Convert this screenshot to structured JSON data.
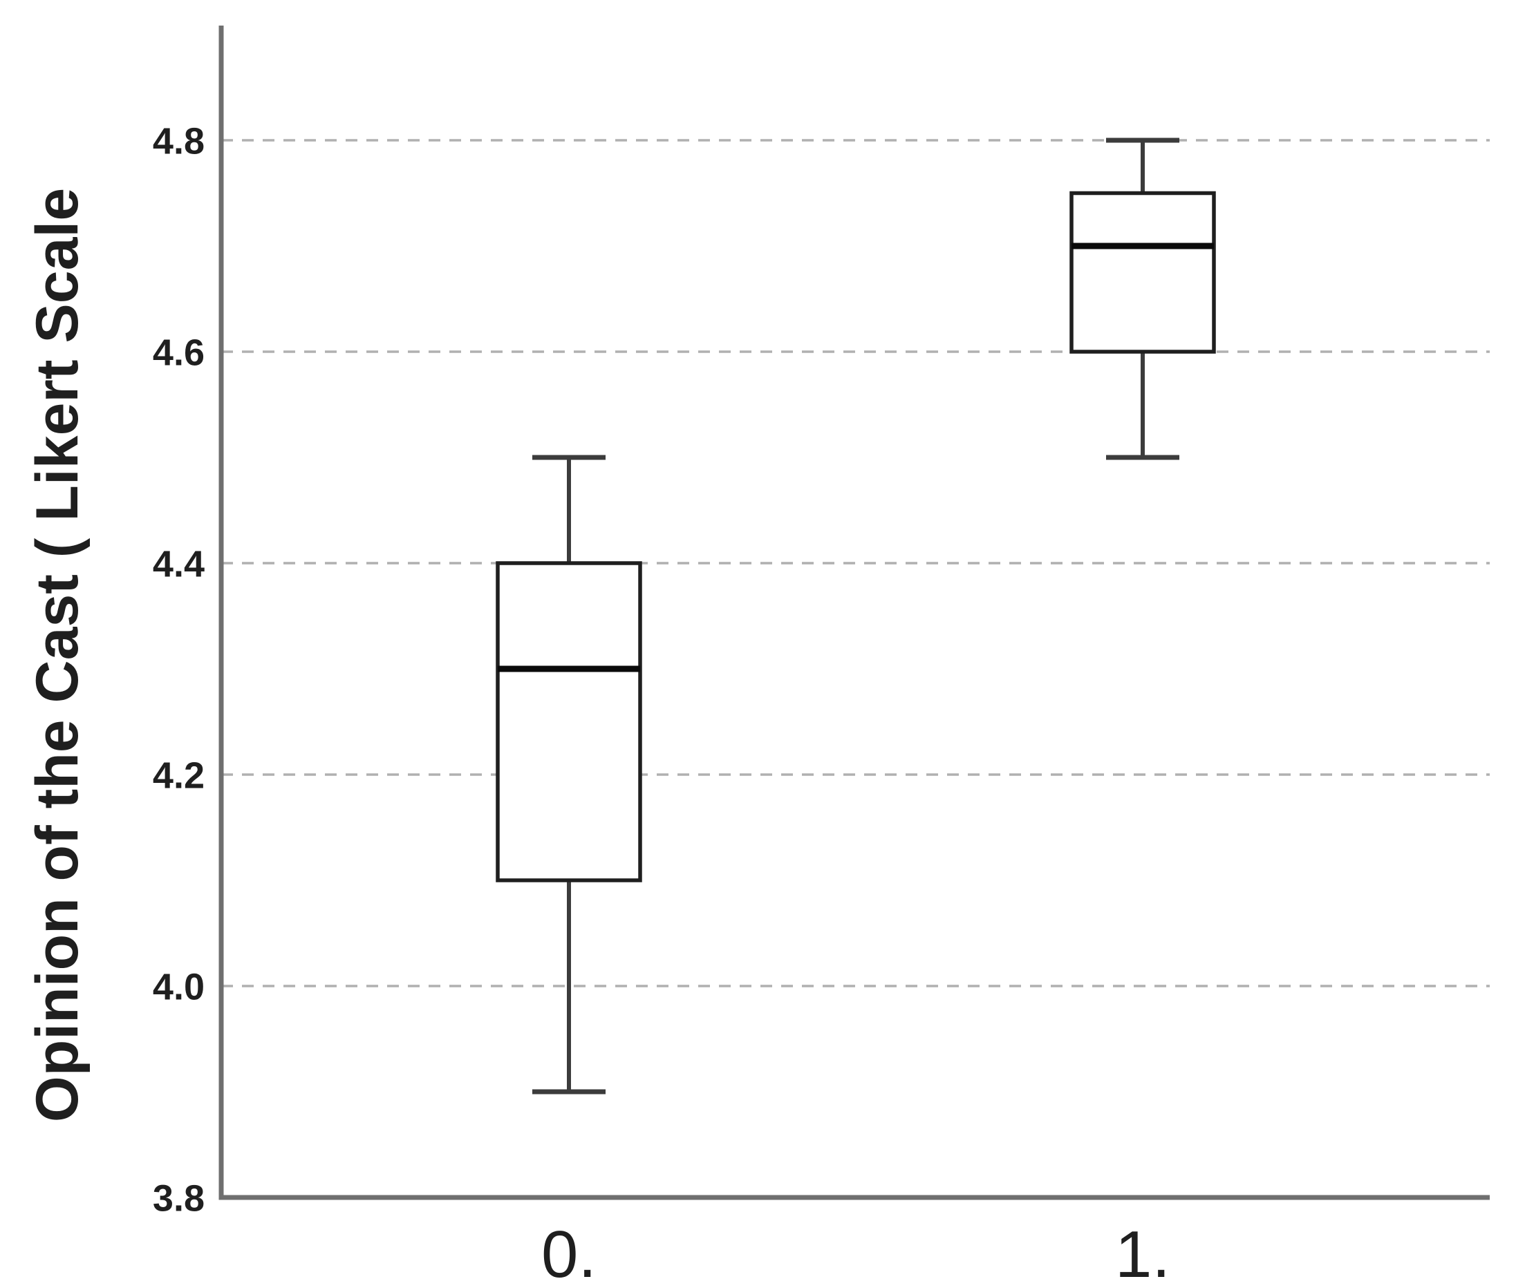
{
  "page": {
    "background": "#ffffff"
  },
  "chart_data": {
    "type": "box",
    "title": "",
    "xlabel": "",
    "ylabel": "Opinion of the Cast ( Likert Scale",
    "categories": [
      "0.",
      "1."
    ],
    "series": [
      {
        "name": "0.",
        "min": 3.9,
        "q1": 4.1,
        "median": 4.3,
        "q3": 4.4,
        "max": 4.5
      },
      {
        "name": "1.",
        "min": 4.5,
        "q1": 4.6,
        "median": 4.7,
        "q3": 4.75,
        "max": 4.8
      }
    ],
    "yticks": [
      3.8,
      4.0,
      4.2,
      4.4,
      4.6,
      4.8
    ],
    "ytick_labels": [
      "3.8",
      "4.0",
      "4.2",
      "4.4",
      "4.6",
      "4.8"
    ],
    "ylim": [
      3.8,
      4.91
    ],
    "grid": "horizontal-dashed",
    "legend": "none",
    "colors": {
      "background": "#ffffff",
      "axis": "#6f6f6f",
      "gridline": "#b0b0b0",
      "box_border": "#1f1f1f",
      "box_fill": "#ffffff",
      "median": "#0a0a0a",
      "whisker": "#3c3c3c",
      "text": "#1f1f1f"
    }
  }
}
